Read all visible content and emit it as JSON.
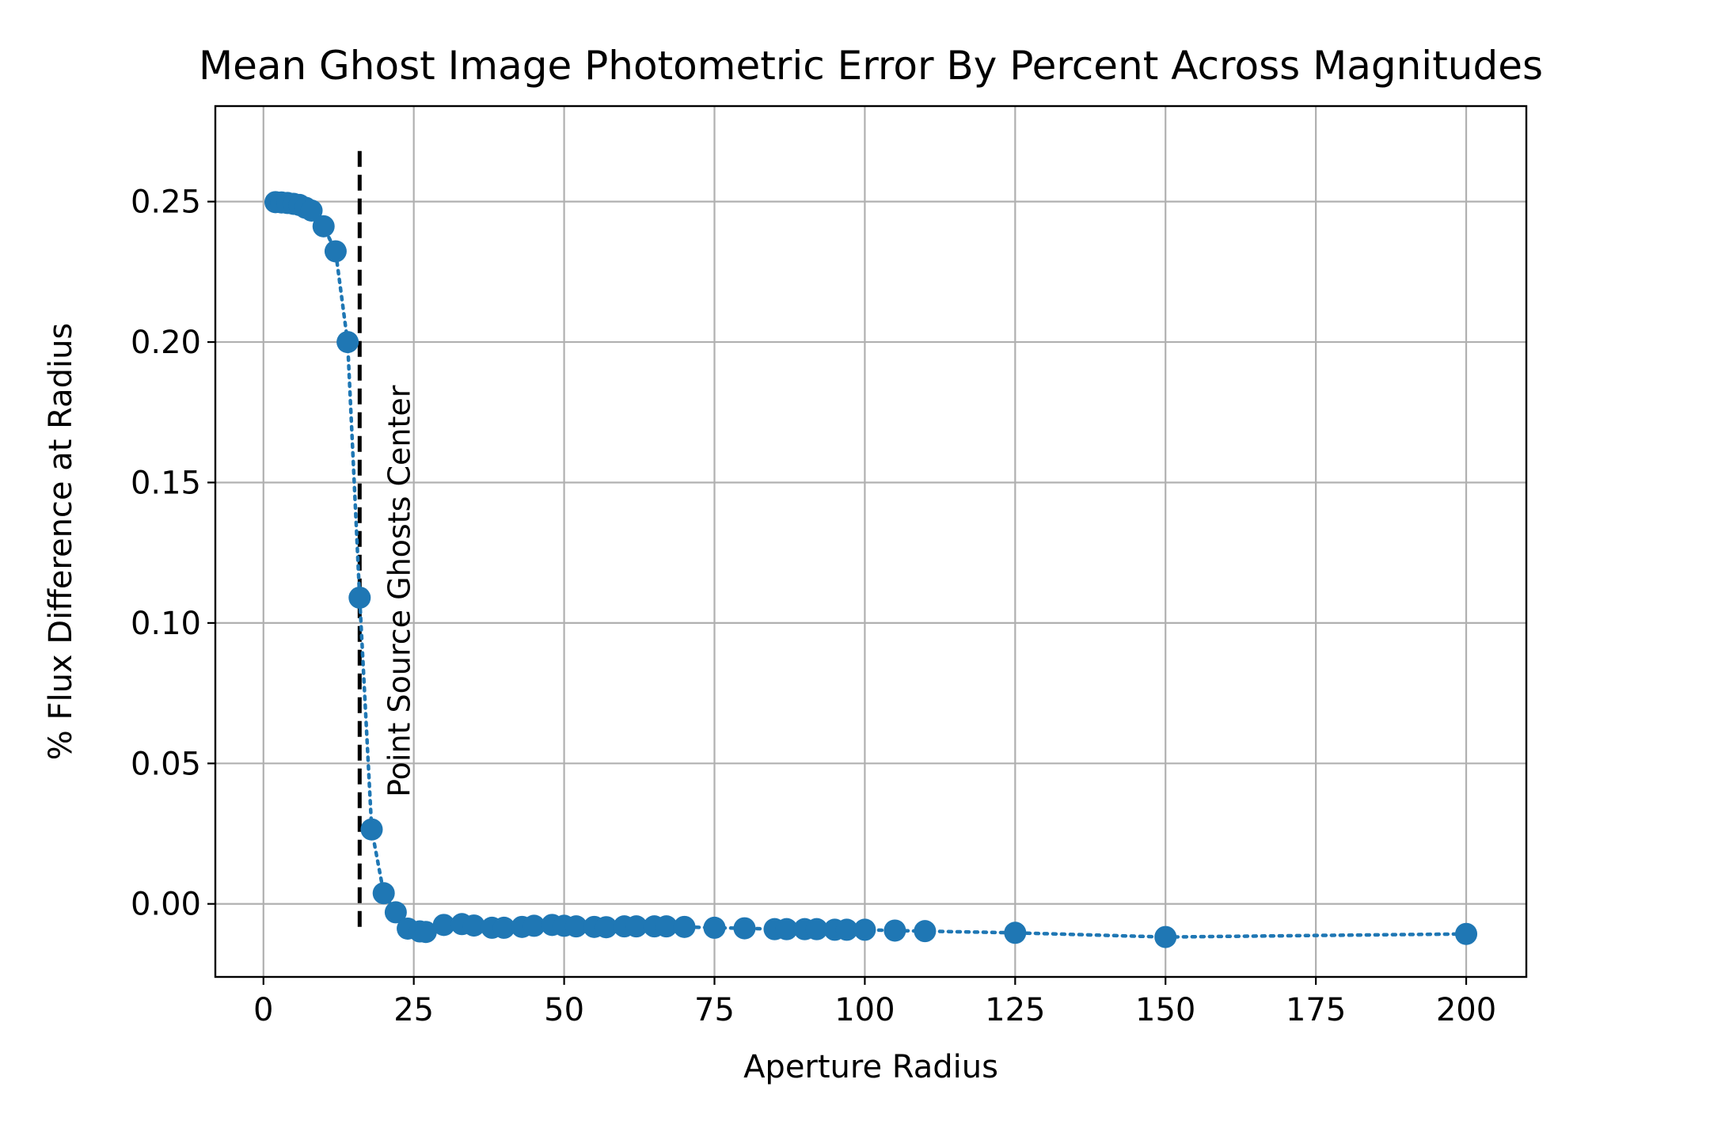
{
  "chart_data": {
    "type": "line",
    "title": "Mean Ghost Image Photometric Error By Percent Across Magnitudes",
    "xlabel": "Aperture Radius",
    "ylabel": "% Flux Difference at Radius",
    "xlim": [
      -8,
      210
    ],
    "ylim": [
      -0.026,
      0.284
    ],
    "xticks": [
      0,
      25,
      50,
      75,
      100,
      125,
      150,
      175,
      200
    ],
    "xtick_labels": [
      "0",
      "25",
      "50",
      "75",
      "100",
      "125",
      "150",
      "175",
      "200"
    ],
    "yticks": [
      0.0,
      0.05,
      0.1,
      0.15,
      0.2,
      0.25
    ],
    "ytick_labels": [
      "0.00",
      "0.05",
      "0.10",
      "0.15",
      "0.20",
      "0.25"
    ],
    "grid": true,
    "series": [
      {
        "color": "#1f77b4",
        "line_style": "dotted",
        "marker": "circle",
        "x": [
          2,
          3,
          4,
          5,
          6,
          7,
          8,
          10,
          12,
          14,
          16,
          18,
          20,
          22,
          24,
          26,
          27,
          30,
          33,
          35,
          38,
          40,
          43,
          45,
          48,
          50,
          52,
          55,
          57,
          60,
          62,
          65,
          67,
          70,
          75,
          80,
          85,
          87,
          90,
          92,
          95,
          97,
          100,
          105,
          110,
          125,
          150,
          200
        ],
        "y": [
          0.2498,
          0.2497,
          0.2495,
          0.2492,
          0.2488,
          0.2478,
          0.2468,
          0.2412,
          0.2323,
          0.2,
          0.109,
          0.0265,
          0.0038,
          -0.003,
          -0.0088,
          -0.0098,
          -0.01,
          -0.0075,
          -0.0072,
          -0.0077,
          -0.0085,
          -0.0085,
          -0.0082,
          -0.0078,
          -0.0075,
          -0.0078,
          -0.008,
          -0.0082,
          -0.0083,
          -0.008,
          -0.008,
          -0.008,
          -0.008,
          -0.0082,
          -0.0085,
          -0.0087,
          -0.009,
          -0.009,
          -0.009,
          -0.009,
          -0.0092,
          -0.0092,
          -0.0092,
          -0.0095,
          -0.0097,
          -0.0103,
          -0.0118,
          -0.0107
        ]
      }
    ],
    "annotation": {
      "text": "Point Source Ghosts Center",
      "x": 16,
      "line_style": "dashed",
      "color": "#000000",
      "y_from": -0.01,
      "y_to": 0.268
    }
  }
}
